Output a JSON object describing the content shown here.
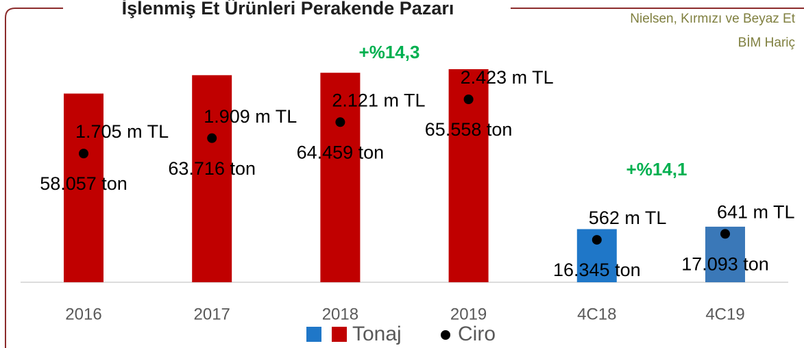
{
  "chart_data": {
    "type": "bar",
    "title": "İşlenmiş Et Ürünleri Perakende Pazarı",
    "source": [
      "Nielsen, Kırmızı ve Beyaz Et",
      "BİM Hariç"
    ],
    "annotations": [
      "+%14,3",
      "+%14,1"
    ],
    "categories": [
      "2016",
      "2017",
      "2018",
      "2019",
      "4C18",
      "4C19"
    ],
    "series": [
      {
        "name": "Tonaj",
        "colors": [
          "#c00000",
          "#c00000",
          "#c00000",
          "#c00000",
          "#1f77c8",
          "#3a78b8"
        ],
        "values": [
          58057,
          63716,
          64459,
          65558,
          16345,
          17093
        ],
        "value_labels": [
          "58.057 ton",
          "63.716 ton",
          "64.459 ton",
          "65.558 ton",
          "16.345 ton",
          "17.093 ton"
        ]
      },
      {
        "name": "Ciro",
        "color": "#000000",
        "axis": "y2",
        "values": [
          1705,
          1909,
          2121,
          2423,
          562,
          641
        ],
        "value_labels": [
          "1.705 m TL",
          "1.909 m TL",
          "2.121 m TL",
          "2.423 m TL",
          "562 m TL",
          "641 m TL"
        ]
      }
    ]
  }
}
